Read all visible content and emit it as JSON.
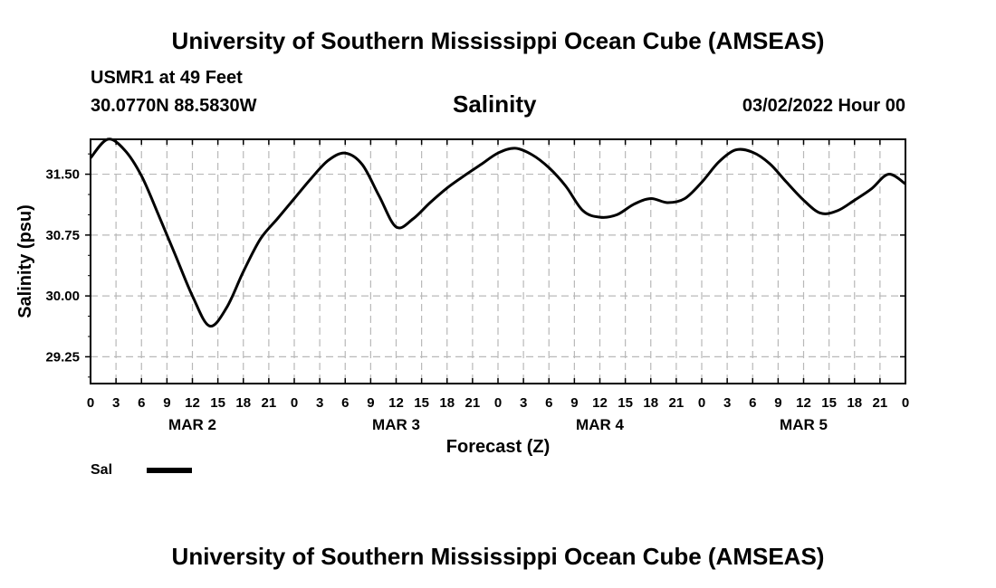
{
  "header": {
    "title_top": "University of Southern Mississippi Ocean Cube (AMSEAS)",
    "station": "USMR1 at 49 Feet",
    "coords": "30.0770N  88.5830W",
    "chart_title": "Salinity",
    "datetime": "03/02/2022 Hour 00",
    "title_bottom": "University of Southern Mississippi Ocean Cube (AMSEAS)"
  },
  "legend": {
    "label": "Sal",
    "color": "#000000"
  },
  "chart_data": {
    "type": "line",
    "title": "Salinity",
    "xlabel": "Forecast (Z)",
    "ylabel": "Salinity (psu)",
    "xlim": [
      0,
      96
    ],
    "ylim": [
      28.92,
      31.93
    ],
    "grid": true,
    "y_ticks": [
      29.25,
      30.0,
      30.75,
      31.5
    ],
    "y_tick_labels": [
      "29.25",
      "30.00",
      "30.75",
      "31.50"
    ],
    "x_ticks": [
      0,
      3,
      6,
      9,
      12,
      15,
      18,
      21,
      24,
      27,
      30,
      33,
      36,
      39,
      42,
      45,
      48,
      51,
      54,
      57,
      60,
      63,
      66,
      69,
      72,
      75,
      78,
      81,
      84,
      87,
      90,
      93,
      96
    ],
    "x_tick_labels": [
      "0",
      "3",
      "6",
      "9",
      "12",
      "15",
      "18",
      "21",
      "0",
      "3",
      "6",
      "9",
      "12",
      "15",
      "18",
      "21",
      "0",
      "3",
      "6",
      "9",
      "12",
      "15",
      "18",
      "21",
      "0",
      "3",
      "6",
      "9",
      "12",
      "15",
      "18",
      "21",
      "0"
    ],
    "day_labels": [
      {
        "x": 12,
        "label": "MAR 2"
      },
      {
        "x": 36,
        "label": "MAR 3"
      },
      {
        "x": 60,
        "label": "MAR 4"
      },
      {
        "x": 84,
        "label": "MAR 5"
      }
    ],
    "series": [
      {
        "name": "Sal",
        "x": [
          0,
          2,
          4,
          6,
          8,
          10,
          12,
          14,
          16,
          18,
          20,
          22,
          24,
          26,
          28,
          30,
          32,
          34,
          36,
          38,
          40,
          42,
          44,
          46,
          48,
          50,
          52,
          54,
          56,
          58,
          60,
          62,
          64,
          66,
          68,
          70,
          72,
          74,
          76,
          78,
          80,
          82,
          84,
          86,
          88,
          90,
          92,
          94,
          96
        ],
        "y": [
          31.7,
          31.93,
          31.8,
          31.48,
          31.0,
          30.5,
          30.0,
          29.63,
          29.85,
          30.3,
          30.7,
          30.95,
          31.2,
          31.45,
          31.67,
          31.76,
          31.62,
          31.23,
          30.85,
          30.95,
          31.15,
          31.33,
          31.48,
          31.62,
          31.76,
          31.82,
          31.74,
          31.58,
          31.35,
          31.05,
          30.97,
          31.0,
          31.13,
          31.2,
          31.15,
          31.2,
          31.4,
          31.65,
          31.8,
          31.77,
          31.63,
          31.4,
          31.18,
          31.02,
          31.05,
          31.18,
          31.32,
          31.5,
          31.38
        ]
      }
    ]
  }
}
